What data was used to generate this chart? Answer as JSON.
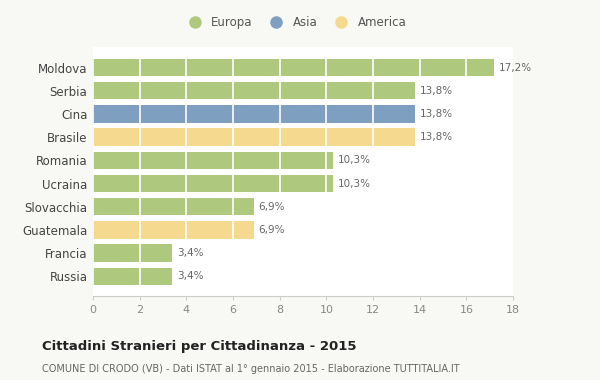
{
  "categories": [
    "Moldova",
    "Serbia",
    "Cina",
    "Brasile",
    "Romania",
    "Ucraina",
    "Slovacchia",
    "Guatemala",
    "Francia",
    "Russia"
  ],
  "values": [
    17.2,
    13.8,
    13.8,
    13.8,
    10.3,
    10.3,
    6.9,
    6.9,
    3.4,
    3.4
  ],
  "labels": [
    "17,2%",
    "13,8%",
    "13,8%",
    "13,8%",
    "10,3%",
    "10,3%",
    "6,9%",
    "6,9%",
    "3,4%",
    "3,4%"
  ],
  "continents": [
    "Europa",
    "Europa",
    "Asia",
    "America",
    "Europa",
    "Europa",
    "Europa",
    "America",
    "Europa",
    "Europa"
  ],
  "colors": {
    "Europa": "#aec97e",
    "Asia": "#7e9fc0",
    "America": "#f5d98e"
  },
  "legend_items": [
    "Europa",
    "Asia",
    "America"
  ],
  "legend_colors": [
    "#aec97e",
    "#7e9fc0",
    "#f5d98e"
  ],
  "xlim": [
    0,
    18
  ],
  "xticks": [
    0,
    2,
    4,
    6,
    8,
    10,
    12,
    14,
    16,
    18
  ],
  "title": "Cittadini Stranieri per Cittadinanza - 2015",
  "subtitle": "COMUNE DI CRODO (VB) - Dati ISTAT al 1° gennaio 2015 - Elaborazione TUTTITALIA.IT",
  "bg_color": "#f8f8f5",
  "plot_bg_color": "#ffffff"
}
